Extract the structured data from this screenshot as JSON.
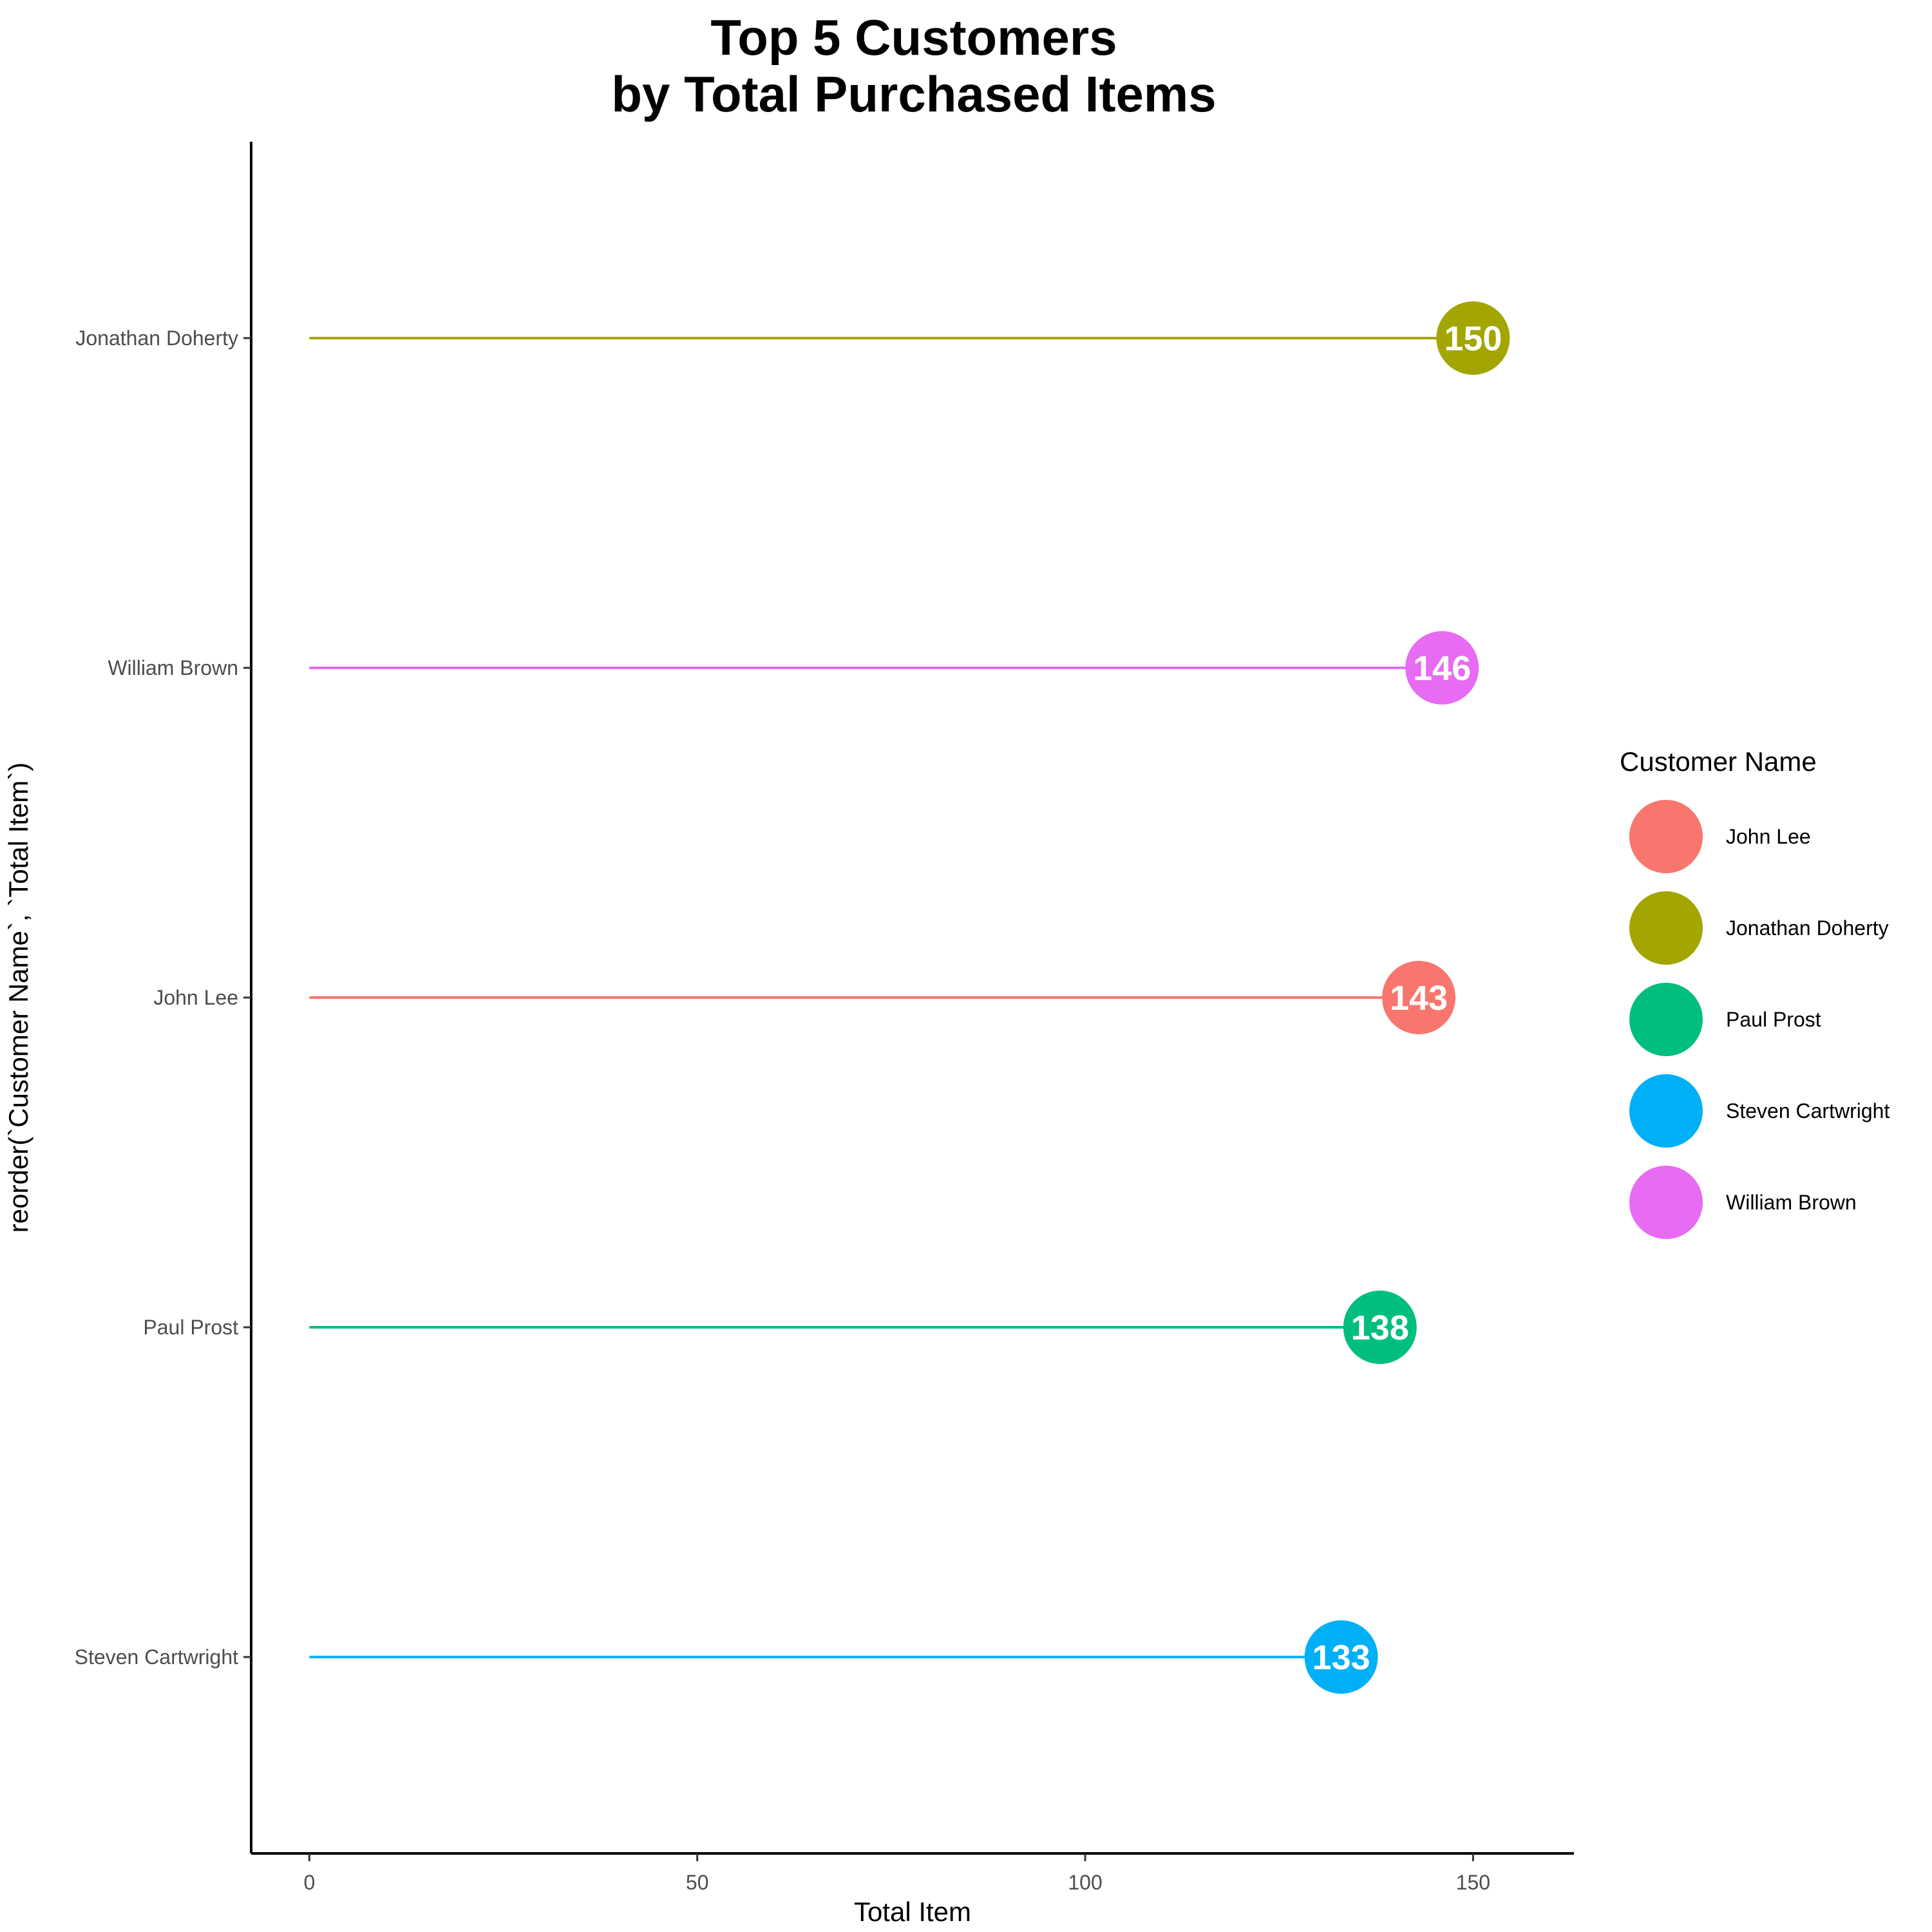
{
  "chart_data": {
    "type": "lollipop",
    "title_lines": [
      "Top 5 Customers",
      "by Total Purchased Items"
    ],
    "xlabel": "Total Item",
    "ylabel": "reorder(`Customer Name`, `Total Item`)",
    "xlim": [
      -7.5,
      163
    ],
    "x_ticks": [
      0,
      50,
      100,
      150
    ],
    "grid": false,
    "categories": [
      "Jonathan Doherty",
      "William Brown",
      "John Lee",
      "Paul Prost",
      "Steven Cartwright"
    ],
    "values": [
      150,
      146,
      143,
      138,
      133
    ],
    "colors": {
      "John Lee": "#F8766D",
      "Jonathan Doherty": "#A3A500",
      "Paul Prost": "#00BF7D",
      "Steven Cartwright": "#00B0F6",
      "William Brown": "#E76BF3"
    },
    "legend": {
      "title": "Customer Name",
      "position": "right",
      "entries": [
        "John Lee",
        "Jonathan Doherty",
        "Paul Prost",
        "Steven Cartwright",
        "William Brown"
      ]
    }
  }
}
